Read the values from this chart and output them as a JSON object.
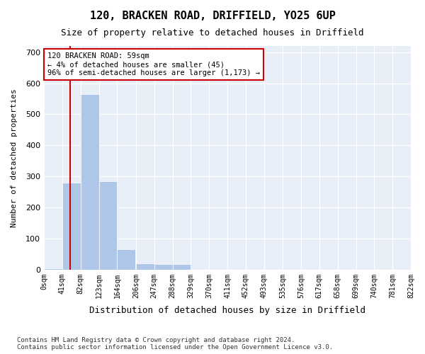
{
  "title1": "120, BRACKEN ROAD, DRIFFIELD, YO25 6UP",
  "title2": "Size of property relative to detached houses in Driffield",
  "xlabel": "Distribution of detached houses by size in Driffield",
  "ylabel": "Number of detached properties",
  "footnote1": "Contains HM Land Registry data © Crown copyright and database right 2024.",
  "footnote2": "Contains public sector information licensed under the Open Government Licence v3.0.",
  "bin_edges": [
    0,
    41,
    82,
    123,
    164,
    206,
    247,
    288,
    329,
    370,
    411,
    452,
    493,
    535,
    576,
    617,
    658,
    699,
    740,
    781,
    822
  ],
  "bar_heights": [
    5,
    280,
    565,
    285,
    65,
    20,
    18,
    18,
    0,
    0,
    0,
    0,
    0,
    0,
    0,
    0,
    0,
    0,
    0,
    0
  ],
  "bar_color": "#aec6e8",
  "bar_edgecolor": "#aec6e8",
  "bg_color": "#e8eef7",
  "grid_color": "#ffffff",
  "property_size": 59,
  "vline_color": "#cc0000",
  "annotation_text": "120 BRACKEN ROAD: 59sqm\n← 4% of detached houses are smaller (45)\n96% of semi-detached houses are larger (1,173) →",
  "annotation_box_color": "#ffffff",
  "annotation_box_edgecolor": "#cc0000",
  "ylim": [
    0,
    720
  ],
  "yticks": [
    0,
    100,
    200,
    300,
    400,
    500,
    600,
    700
  ],
  "tick_labels": [
    "0sqm",
    "41sqm",
    "82sqm",
    "123sqm",
    "164sqm",
    "206sqm",
    "247sqm",
    "288sqm",
    "329sqm",
    "370sqm",
    "411sqm",
    "452sqm",
    "493sqm",
    "535sqm",
    "576sqm",
    "617sqm",
    "658sqm",
    "699sqm",
    "740sqm",
    "781sqm",
    "822sqm"
  ]
}
